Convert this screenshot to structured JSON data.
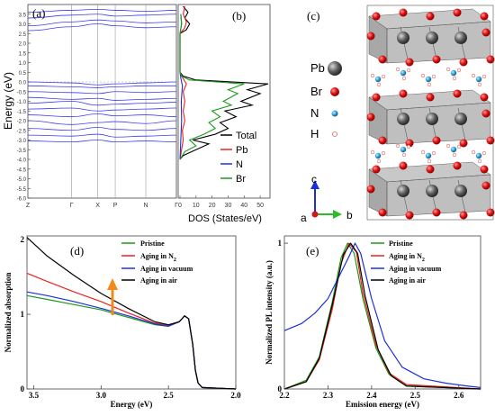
{
  "figure": {
    "panel_a": {
      "label": "(a)"
    },
    "panel_b": {
      "label": "(b)"
    },
    "panel_c": {
      "label": "(c)"
    },
    "panel_d": {
      "label": "(d)"
    },
    "panel_e": {
      "label": "(e)"
    }
  },
  "colors": {
    "pristine": "#1a9a1a",
    "nitrogen": "#e8231e",
    "vacuum": "#1f2fd8",
    "air": "#000000",
    "band": "#3b3bf0",
    "pb": "#555555",
    "br": "#e01010",
    "n": "#2a9fd8",
    "h": "#f4c0c0",
    "arrow": "#f08a1c"
  },
  "chart_data": [
    {
      "panel": "(a)",
      "type": "line",
      "description_role": "band structure",
      "ylabel": "Energy (eV)",
      "ylim": [
        -6.0,
        4.0
      ],
      "yticks": [
        "-6.0",
        "-5.5",
        "-5.0",
        "-4.5",
        "-4.0",
        "-3.5",
        "-3.0",
        "-2.5",
        "-2.0",
        "-1.5",
        "-1.0",
        "-0.5",
        "0.0",
        "0.5",
        "1.0",
        "1.5",
        "2.0",
        "2.5",
        "3.0",
        "3.5"
      ],
      "kpoints": [
        "Z",
        "Γ",
        "X",
        "P",
        "N",
        "Γ"
      ],
      "kpoint_positions": [
        0,
        1.0,
        1.6,
        2.0,
        2.7,
        3.4
      ],
      "series": [
        {
          "values": [
            2.65,
            2.85,
            3.0,
            2.9,
            2.8,
            2.85
          ]
        },
        {
          "values": [
            2.9,
            3.1,
            3.2,
            3.15,
            3.05,
            3.1
          ]
        },
        {
          "values": [
            3.3,
            3.45,
            3.5,
            3.4,
            3.45,
            3.5
          ]
        },
        {
          "values": [
            3.6,
            3.7,
            3.75,
            3.7,
            3.65,
            3.7
          ]
        },
        {
          "values": [
            0.0,
            -0.05,
            -0.15,
            -0.1,
            -0.05,
            0.0
          ]
        },
        {
          "values": [
            -0.2,
            -0.25,
            -0.3,
            -0.25,
            -0.2,
            -0.2
          ]
        },
        {
          "values": [
            -0.5,
            -0.55,
            -0.6,
            -0.5,
            -0.55,
            -0.5
          ]
        },
        {
          "values": [
            -0.8,
            -0.9,
            -0.85,
            -0.95,
            -0.9,
            -0.85
          ]
        },
        {
          "values": [
            -1.1,
            -1.0,
            -1.2,
            -1.15,
            -1.1,
            -1.05
          ]
        },
        {
          "values": [
            -1.4,
            -1.35,
            -1.5,
            -1.45,
            -1.4,
            -1.35
          ]
        },
        {
          "values": [
            -1.7,
            -1.8,
            -1.65,
            -1.75,
            -1.7,
            -1.8
          ]
        },
        {
          "values": [
            -2.0,
            -2.2,
            -2.1,
            -2.05,
            -2.15,
            -2.0
          ]
        },
        {
          "values": [
            -2.4,
            -2.5,
            -2.35,
            -2.45,
            -2.5,
            -2.4
          ]
        },
        {
          "values": [
            -2.75,
            -2.8,
            -2.7,
            -2.85,
            -2.8,
            -2.75
          ]
        },
        {
          "values": [
            -3.05,
            -3.1,
            -3.0,
            -3.1,
            -3.05,
            -3.1
          ]
        }
      ]
    },
    {
      "panel": "(b)",
      "type": "line",
      "xlabel": "DOS (States/eV)",
      "xlim": [
        0,
        55
      ],
      "xticks": [
        "0",
        "10",
        "20",
        "30",
        "40",
        "50"
      ],
      "ylim": [
        -6.0,
        4.0
      ],
      "legend": "right",
      "series": [
        {
          "name": "Total",
          "color": "#000000",
          "points": [
            [
              0,
              -4.0
            ],
            [
              2,
              -3.8
            ],
            [
              10,
              -3.5
            ],
            [
              18,
              -3.2
            ],
            [
              8,
              -3.0
            ],
            [
              22,
              -2.7
            ],
            [
              30,
              -2.4
            ],
            [
              25,
              -2.1
            ],
            [
              35,
              -1.8
            ],
            [
              28,
              -1.5
            ],
            [
              45,
              -1.2
            ],
            [
              38,
              -1.0
            ],
            [
              50,
              -0.6
            ],
            [
              42,
              -0.4
            ],
            [
              55,
              -0.1
            ],
            [
              10,
              0.1
            ],
            [
              2,
              0.3
            ],
            [
              0,
              0.5
            ],
            [
              0,
              2.5
            ],
            [
              4,
              2.7
            ],
            [
              6,
              3.0
            ],
            [
              3,
              3.3
            ],
            [
              5,
              3.6
            ],
            [
              2,
              3.9
            ]
          ]
        },
        {
          "name": "Pb",
          "color": "#e8231e",
          "points": [
            [
              0,
              -4.0
            ],
            [
              1,
              -3.5
            ],
            [
              2,
              -3.0
            ],
            [
              1.5,
              -2.5
            ],
            [
              3,
              -2.0
            ],
            [
              2,
              -1.5
            ],
            [
              3,
              -1.0
            ],
            [
              2,
              -0.5
            ],
            [
              4,
              -0.1
            ],
            [
              1,
              0.3
            ],
            [
              0,
              0.5
            ],
            [
              0,
              2.5
            ],
            [
              3,
              2.8
            ],
            [
              4,
              3.1
            ],
            [
              2,
              3.5
            ],
            [
              3,
              3.9
            ]
          ]
        },
        {
          "name": "N",
          "color": "#1f2fd8",
          "points": [
            [
              0,
              -4.0
            ],
            [
              0.5,
              -3.0
            ],
            [
              1,
              -2.0
            ],
            [
              0.8,
              -1.0
            ],
            [
              1.5,
              -0.2
            ],
            [
              0.5,
              0.2
            ],
            [
              0,
              0.5
            ],
            [
              0,
              2.5
            ],
            [
              1,
              3.0
            ],
            [
              0.5,
              3.5
            ]
          ]
        },
        {
          "name": "Br",
          "color": "#1a9a1a",
          "points": [
            [
              0,
              -4.0
            ],
            [
              3,
              -3.6
            ],
            [
              10,
              -3.3
            ],
            [
              6,
              -3.0
            ],
            [
              15,
              -2.7
            ],
            [
              22,
              -2.4
            ],
            [
              18,
              -2.1
            ],
            [
              25,
              -1.8
            ],
            [
              20,
              -1.5
            ],
            [
              32,
              -1.2
            ],
            [
              27,
              -1.0
            ],
            [
              36,
              -0.6
            ],
            [
              30,
              -0.4
            ],
            [
              40,
              -0.1
            ],
            [
              6,
              0.1
            ],
            [
              1,
              0.3
            ],
            [
              0,
              0.5
            ],
            [
              0,
              2.5
            ],
            [
              1,
              3.0
            ],
            [
              0.5,
              3.5
            ]
          ]
        }
      ]
    },
    {
      "panel": "(d)",
      "type": "line",
      "xlabel": "Energy (eV)",
      "ylabel": "Normalized absorption",
      "xlim": [
        3.55,
        2.0
      ],
      "ylim": [
        0,
        2.05
      ],
      "xticks": [
        "3.5",
        "3.0",
        "2.5",
        "2.0"
      ],
      "yticks": [
        "0",
        "1",
        "2"
      ],
      "legend": "top-right",
      "series": [
        {
          "name": "Pristine",
          "color": "#1a9a1a",
          "points": [
            [
              3.55,
              1.25
            ],
            [
              3.4,
              1.2
            ],
            [
              3.2,
              1.13
            ],
            [
              3.0,
              1.06
            ],
            [
              2.8,
              0.96
            ],
            [
              2.6,
              0.86
            ],
            [
              2.5,
              0.84
            ],
            [
              2.42,
              0.9
            ],
            [
              2.38,
              0.98
            ],
            [
              2.35,
              0.94
            ],
            [
              2.32,
              0.6
            ],
            [
              2.3,
              0.25
            ],
            [
              2.28,
              0.08
            ],
            [
              2.25,
              0.02
            ],
            [
              2.0,
              0.0
            ]
          ]
        },
        {
          "name": "Aging in N2",
          "color": "#e8231e",
          "points": [
            [
              3.55,
              1.55
            ],
            [
              3.4,
              1.44
            ],
            [
              3.2,
              1.3
            ],
            [
              3.0,
              1.17
            ],
            [
              2.8,
              1.02
            ],
            [
              2.6,
              0.88
            ],
            [
              2.5,
              0.85
            ],
            [
              2.42,
              0.9
            ],
            [
              2.38,
              0.98
            ],
            [
              2.35,
              0.94
            ],
            [
              2.32,
              0.6
            ],
            [
              2.3,
              0.25
            ],
            [
              2.28,
              0.08
            ],
            [
              2.25,
              0.02
            ],
            [
              2.0,
              0.0
            ]
          ]
        },
        {
          "name": "Aging in vacuum",
          "color": "#1f2fd8",
          "points": [
            [
              3.55,
              1.3
            ],
            [
              3.4,
              1.25
            ],
            [
              3.2,
              1.17
            ],
            [
              3.0,
              1.08
            ],
            [
              2.8,
              0.98
            ],
            [
              2.6,
              0.87
            ],
            [
              2.5,
              0.84
            ],
            [
              2.42,
              0.9
            ],
            [
              2.38,
              0.98
            ],
            [
              2.35,
              0.94
            ],
            [
              2.32,
              0.6
            ],
            [
              2.3,
              0.25
            ],
            [
              2.28,
              0.08
            ],
            [
              2.25,
              0.02
            ],
            [
              2.0,
              0.0
            ]
          ]
        },
        {
          "name": "Aging in air",
          "color": "#000000",
          "points": [
            [
              3.55,
              2.03
            ],
            [
              3.4,
              1.78
            ],
            [
              3.2,
              1.52
            ],
            [
              3.0,
              1.28
            ],
            [
              2.8,
              1.08
            ],
            [
              2.6,
              0.9
            ],
            [
              2.5,
              0.86
            ],
            [
              2.42,
              0.9
            ],
            [
              2.38,
              0.98
            ],
            [
              2.35,
              0.94
            ],
            [
              2.32,
              0.6
            ],
            [
              2.3,
              0.25
            ],
            [
              2.28,
              0.08
            ],
            [
              2.25,
              0.02
            ],
            [
              2.0,
              0.0
            ]
          ]
        }
      ],
      "annotation": "upward arrow near E = 2.95 eV"
    },
    {
      "panel": "(e)",
      "type": "line",
      "xlabel": "Emission energy (eV)",
      "ylabel": "Normalized PL intensity (a.u.)",
      "xlim": [
        2.2,
        2.65
      ],
      "ylim": [
        0,
        1.05
      ],
      "xticks": [
        "2.2",
        "2.3",
        "2.4",
        "2.5",
        "2.6"
      ],
      "yticks": [
        "0",
        "1"
      ],
      "legend": "top-right",
      "series": [
        {
          "name": "Pristine",
          "color": "#1a9a1a",
          "points": [
            [
              2.2,
              0.0
            ],
            [
              2.25,
              0.06
            ],
            [
              2.28,
              0.22
            ],
            [
              2.31,
              0.6
            ],
            [
              2.33,
              0.9
            ],
            [
              2.345,
              1.0
            ],
            [
              2.36,
              0.93
            ],
            [
              2.38,
              0.62
            ],
            [
              2.41,
              0.28
            ],
            [
              2.44,
              0.1
            ],
            [
              2.48,
              0.02
            ],
            [
              2.65,
              0.0
            ]
          ]
        },
        {
          "name": "Aging in N2",
          "color": "#e8231e",
          "points": [
            [
              2.2,
              0.0
            ],
            [
              2.25,
              0.05
            ],
            [
              2.28,
              0.2
            ],
            [
              2.31,
              0.55
            ],
            [
              2.33,
              0.86
            ],
            [
              2.348,
              1.0
            ],
            [
              2.365,
              0.94
            ],
            [
              2.38,
              0.66
            ],
            [
              2.41,
              0.3
            ],
            [
              2.44,
              0.11
            ],
            [
              2.48,
              0.03
            ],
            [
              2.65,
              0.0
            ]
          ]
        },
        {
          "name": "Aging in vacuum",
          "color": "#1f2fd8",
          "points": [
            [
              2.2,
              0.4
            ],
            [
              2.24,
              0.45
            ],
            [
              2.27,
              0.52
            ],
            [
              2.3,
              0.62
            ],
            [
              2.33,
              0.8
            ],
            [
              2.35,
              0.92
            ],
            [
              2.362,
              1.0
            ],
            [
              2.375,
              0.93
            ],
            [
              2.4,
              0.62
            ],
            [
              2.43,
              0.33
            ],
            [
              2.47,
              0.15
            ],
            [
              2.52,
              0.07
            ],
            [
              2.57,
              0.04
            ],
            [
              2.62,
              0.02
            ],
            [
              2.65,
              0.01
            ]
          ]
        },
        {
          "name": "Aging in air",
          "color": "#000000",
          "points": [
            [
              2.2,
              0.0
            ],
            [
              2.25,
              0.05
            ],
            [
              2.28,
              0.21
            ],
            [
              2.31,
              0.58
            ],
            [
              2.335,
              0.92
            ],
            [
              2.352,
              1.0
            ],
            [
              2.368,
              0.93
            ],
            [
              2.385,
              0.64
            ],
            [
              2.415,
              0.27
            ],
            [
              2.445,
              0.09
            ],
            [
              2.48,
              0.02
            ],
            [
              2.65,
              0.0
            ]
          ]
        }
      ]
    }
  ],
  "legend_a_b": {
    "total": "Total",
    "pb": "Pb",
    "n": "N",
    "br": "Br"
  },
  "legend_d": {
    "pristine": "Pristine",
    "n2_prefix": "Aging in N",
    "n2_sub": "2",
    "vacuum": "Aging in vacuum",
    "air": "Aging in air"
  },
  "legend_e": {
    "pristine": "Pristine",
    "n2_prefix": "Aging in N",
    "n2_sub": "2",
    "vacuum": "Aging in vacuum",
    "air": "Aging in air"
  },
  "structure": {
    "legend": {
      "pb": "Pb",
      "br": "Br",
      "n": "N",
      "h": "H"
    },
    "axes": {
      "a": "a",
      "b": "b",
      "c": "c"
    }
  }
}
